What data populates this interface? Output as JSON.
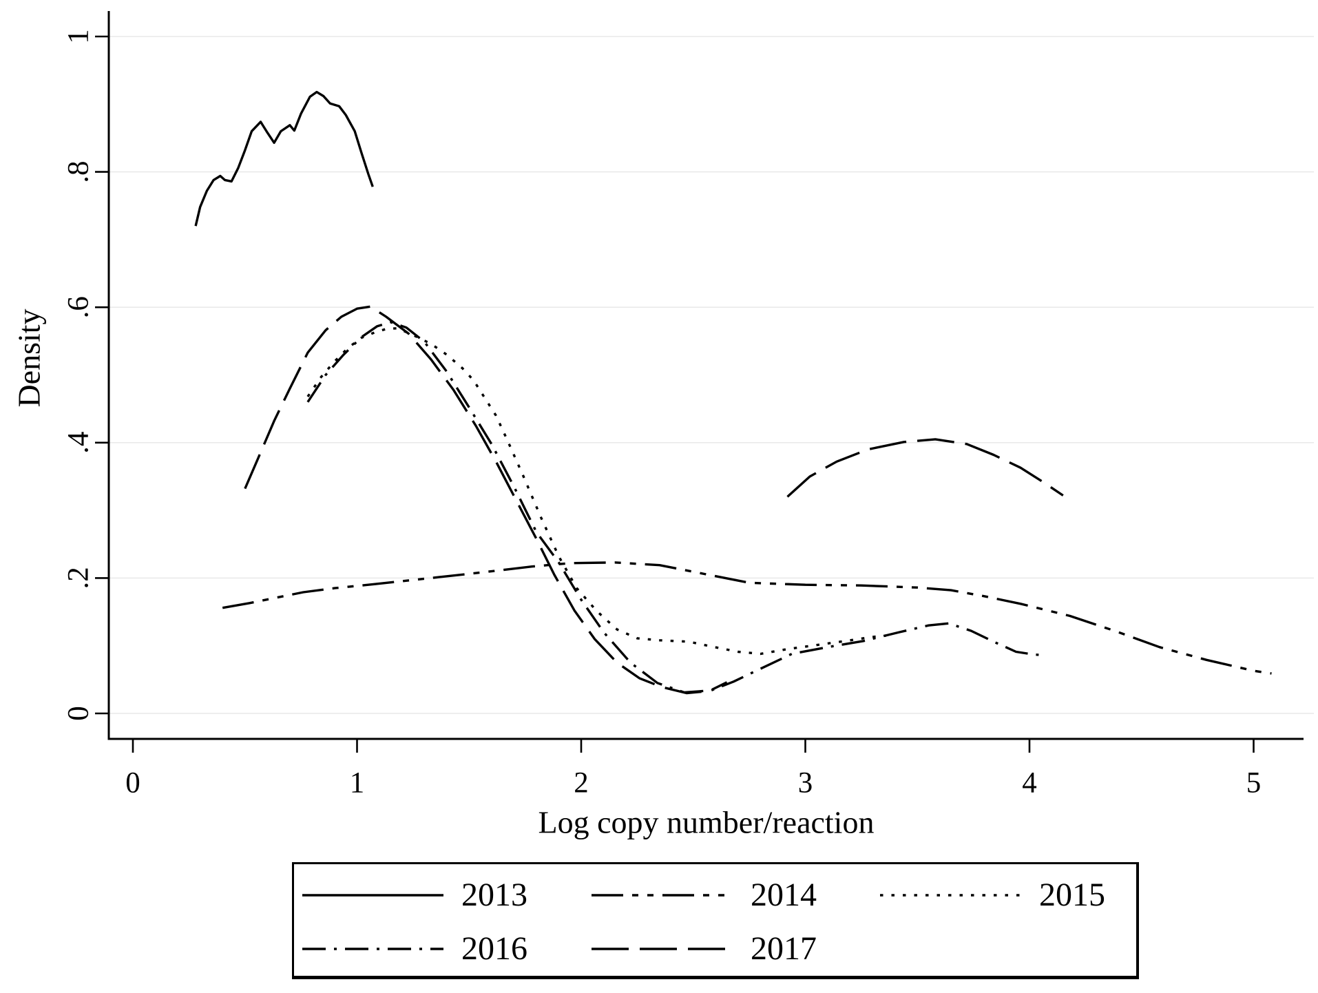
{
  "figure": {
    "kind": "stata-style kernel density plot",
    "background": "#ffffff"
  },
  "chart_data": {
    "type": "line",
    "title": "",
    "xlabel": "Log copy number/reaction",
    "ylabel": "Density",
    "xlim": [
      0,
      5.2
    ],
    "ylim": [
      0,
      1
    ],
    "grid": "horizontal gridlines at each y tick, light gray",
    "legend_position": "below chart, boxed, two rows",
    "x_ticks": {
      "values": [
        0,
        1,
        2,
        3,
        4,
        5
      ],
      "labels": [
        "0",
        "1",
        "2",
        "3",
        "4",
        "5"
      ]
    },
    "y_ticks": {
      "values": [
        0,
        0.2,
        0.4,
        0.6,
        0.8,
        1
      ],
      "labels": [
        "0",
        ".2",
        ".4",
        ".6",
        ".8",
        "1"
      ]
    },
    "colors": {
      "line": "#000000",
      "grid": "#e9e9e9",
      "axis": "#000000",
      "background": "#ffffff"
    },
    "legend": {
      "rows": [
        [
          "2013",
          "2014",
          "2015"
        ],
        [
          "2016",
          "2017"
        ]
      ]
    },
    "series": [
      {
        "name": "2013",
        "line_style": "solid",
        "dash": [],
        "segments": [
          [
            [
              0.28,
              0.72
            ],
            [
              0.3,
              0.748
            ],
            [
              0.33,
              0.772
            ],
            [
              0.36,
              0.788
            ],
            [
              0.39,
              0.794
            ],
            [
              0.41,
              0.788
            ],
            [
              0.44,
              0.786
            ],
            [
              0.47,
              0.806
            ],
            [
              0.5,
              0.832
            ],
            [
              0.53,
              0.86
            ],
            [
              0.57,
              0.874
            ],
            [
              0.6,
              0.858
            ],
            [
              0.63,
              0.843
            ],
            [
              0.66,
              0.86
            ],
            [
              0.7,
              0.869
            ],
            [
              0.72,
              0.861
            ],
            [
              0.75,
              0.886
            ],
            [
              0.79,
              0.911
            ],
            [
              0.82,
              0.918
            ],
            [
              0.85,
              0.912
            ],
            [
              0.88,
              0.901
            ],
            [
              0.92,
              0.897
            ],
            [
              0.95,
              0.884
            ],
            [
              0.99,
              0.86
            ],
            [
              1.02,
              0.828
            ],
            [
              1.05,
              0.797
            ],
            [
              1.07,
              0.778
            ]
          ]
        ]
      },
      {
        "name": "2014",
        "line_style": "dash-dot-dot",
        "dash": [
          46,
          13,
          9,
          13,
          9,
          13
        ],
        "segments": [
          [
            [
              0.4,
              0.156
            ],
            [
              0.52,
              0.163
            ],
            [
              0.64,
              0.171
            ],
            [
              0.76,
              0.179
            ],
            [
              0.9,
              0.185
            ],
            [
              1.08,
              0.191
            ],
            [
              1.3,
              0.199
            ],
            [
              1.55,
              0.208
            ],
            [
              1.78,
              0.217
            ],
            [
              1.95,
              0.222
            ],
            [
              2.15,
              0.223
            ],
            [
              2.35,
              0.219
            ],
            [
              2.55,
              0.206
            ],
            [
              2.75,
              0.193
            ],
            [
              3.0,
              0.19
            ],
            [
              3.25,
              0.189
            ],
            [
              3.5,
              0.186
            ],
            [
              3.65,
              0.182
            ],
            [
              3.8,
              0.173
            ],
            [
              3.96,
              0.162
            ],
            [
              4.18,
              0.144
            ],
            [
              4.38,
              0.122
            ],
            [
              4.58,
              0.098
            ],
            [
              4.79,
              0.079
            ],
            [
              5.0,
              0.063
            ],
            [
              5.08,
              0.059
            ]
          ]
        ]
      },
      {
        "name": "2015",
        "line_style": "dotted",
        "dash": [
          4.5,
          12
        ],
        "segments": [
          [
            [
              0.78,
              0.468
            ],
            [
              0.84,
              0.497
            ],
            [
              0.9,
              0.52
            ],
            [
              0.96,
              0.54
            ],
            [
              1.02,
              0.555
            ],
            [
              1.08,
              0.563
            ],
            [
              1.13,
              0.568
            ],
            [
              1.18,
              0.569
            ],
            [
              1.25,
              0.559
            ],
            [
              1.33,
              0.546
            ],
            [
              1.4,
              0.53
            ],
            [
              1.47,
              0.51
            ],
            [
              1.52,
              0.492
            ],
            [
              1.57,
              0.466
            ],
            [
              1.62,
              0.44
            ],
            [
              1.67,
              0.404
            ],
            [
              1.74,
              0.352
            ],
            [
              1.82,
              0.29
            ],
            [
              1.9,
              0.232
            ],
            [
              1.98,
              0.185
            ],
            [
              2.07,
              0.151
            ],
            [
              2.16,
              0.124
            ],
            [
              2.25,
              0.111
            ],
            [
              2.35,
              0.108
            ],
            [
              2.48,
              0.106
            ],
            [
              2.58,
              0.099
            ],
            [
              2.7,
              0.091
            ],
            [
              2.8,
              0.088
            ],
            [
              2.92,
              0.095
            ],
            [
              3.05,
              0.101
            ],
            [
              3.18,
              0.107
            ],
            [
              3.3,
              0.113
            ],
            [
              3.36,
              0.115
            ]
          ]
        ]
      },
      {
        "name": "2016",
        "line_style": "dash-dot",
        "dash": [
          34,
          12,
          4,
          12
        ],
        "segments": [
          [
            [
              0.78,
              0.46
            ],
            [
              0.86,
              0.5
            ],
            [
              0.94,
              0.53
            ],
            [
              1.02,
              0.556
            ],
            [
              1.09,
              0.572
            ],
            [
              1.15,
              0.578
            ],
            [
              1.22,
              0.57
            ],
            [
              1.3,
              0.549
            ],
            [
              1.4,
              0.505
            ],
            [
              1.5,
              0.452
            ],
            [
              1.6,
              0.398
            ],
            [
              1.7,
              0.335
            ],
            [
              1.8,
              0.268
            ],
            [
              1.9,
              0.223
            ],
            [
              2.0,
              0.168
            ],
            [
              2.1,
              0.12
            ],
            [
              2.22,
              0.075
            ],
            [
              2.34,
              0.045
            ],
            [
              2.46,
              0.031
            ],
            [
              2.58,
              0.034
            ],
            [
              2.68,
              0.047
            ],
            [
              2.8,
              0.066
            ],
            [
              2.94,
              0.088
            ],
            [
              3.1,
              0.098
            ],
            [
              3.26,
              0.107
            ],
            [
              3.42,
              0.12
            ],
            [
              3.55,
              0.13
            ],
            [
              3.64,
              0.133
            ],
            [
              3.74,
              0.122
            ],
            [
              3.84,
              0.106
            ],
            [
              3.94,
              0.091
            ],
            [
              4.02,
              0.087
            ],
            [
              4.07,
              0.086
            ]
          ]
        ]
      },
      {
        "name": "2017",
        "line_style": "long-dash",
        "dash": [
          54,
          16
        ],
        "segments": [
          [
            [
              0.5,
              0.332
            ],
            [
              0.56,
              0.378
            ],
            [
              0.63,
              0.432
            ],
            [
              0.7,
              0.48
            ],
            [
              0.78,
              0.533
            ],
            [
              0.86,
              0.566
            ],
            [
              0.93,
              0.586
            ],
            [
              1.0,
              0.598
            ],
            [
              1.06,
              0.601
            ],
            [
              1.13,
              0.586
            ],
            [
              1.23,
              0.561
            ],
            [
              1.33,
              0.523
            ],
            [
              1.43,
              0.478
            ],
            [
              1.53,
              0.425
            ],
            [
              1.62,
              0.372
            ],
            [
              1.71,
              0.315
            ],
            [
              1.8,
              0.258
            ],
            [
              1.88,
              0.205
            ],
            [
              1.97,
              0.152
            ],
            [
              2.06,
              0.11
            ],
            [
              2.16,
              0.075
            ],
            [
              2.26,
              0.052
            ],
            [
              2.36,
              0.039
            ],
            [
              2.47,
              0.03
            ],
            [
              2.57,
              0.033
            ],
            [
              2.65,
              0.046
            ]
          ],
          [
            [
              2.92,
              0.32
            ],
            [
              3.02,
              0.35
            ],
            [
              3.14,
              0.372
            ],
            [
              3.28,
              0.39
            ],
            [
              3.44,
              0.401
            ],
            [
              3.58,
              0.405
            ],
            [
              3.72,
              0.398
            ],
            [
              3.84,
              0.382
            ],
            [
              3.96,
              0.363
            ],
            [
              4.06,
              0.342
            ],
            [
              4.15,
              0.322
            ]
          ]
        ]
      }
    ]
  }
}
